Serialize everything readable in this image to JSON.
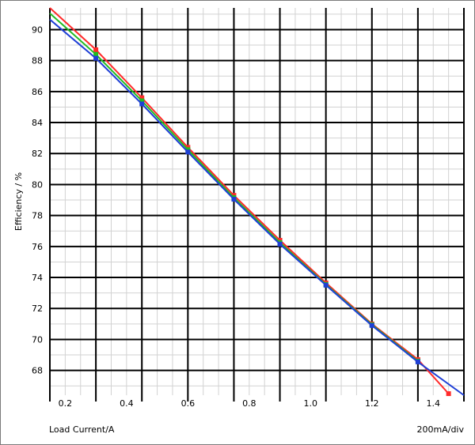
{
  "chart_data": {
    "type": "line",
    "title": "",
    "xlabel": "Load Current/A",
    "ylabel": "Efficiency / %",
    "x_scale_note": "200mA/div",
    "xlim": [
      0.15,
      1.5
    ],
    "ylim": [
      66.4,
      91.4
    ],
    "x_ticks": [
      0.2,
      0.4,
      0.6,
      0.8,
      1.0,
      1.2,
      1.4
    ],
    "x_tick_labels": [
      "0.2",
      "0.4",
      "0.6",
      "0.8",
      "1.0",
      "1.2",
      "1.4"
    ],
    "y_ticks": [
      68,
      70,
      72,
      74,
      76,
      78,
      80,
      82,
      84,
      86,
      88,
      90
    ],
    "y_tick_labels": [
      "68",
      "70",
      "72",
      "74",
      "76",
      "78",
      "80",
      "82",
      "84",
      "86",
      "88",
      "90"
    ],
    "grid": true,
    "series": [
      {
        "color": "#ff2a2a",
        "points": [
          [
            0.15,
            91.4
          ],
          [
            0.3,
            88.7
          ],
          [
            0.45,
            85.6
          ],
          [
            0.6,
            82.4
          ],
          [
            0.75,
            79.3
          ],
          [
            0.9,
            76.4
          ],
          [
            1.05,
            73.65
          ],
          [
            1.2,
            71.0
          ],
          [
            1.35,
            68.7
          ],
          [
            1.45,
            66.5
          ]
        ]
      },
      {
        "color": "#22bb22",
        "points": [
          [
            0.15,
            91.05
          ],
          [
            0.3,
            88.4
          ],
          [
            0.45,
            85.4
          ],
          [
            0.6,
            82.25
          ],
          [
            0.75,
            79.15
          ],
          [
            0.9,
            76.25
          ],
          [
            1.05,
            73.55
          ],
          [
            1.2,
            70.95
          ],
          [
            1.35,
            68.6
          ]
        ]
      },
      {
        "color": "#1f3fd6",
        "points": [
          [
            0.15,
            90.65
          ],
          [
            0.3,
            88.15
          ],
          [
            0.45,
            85.2
          ],
          [
            0.6,
            82.1
          ],
          [
            0.75,
            79.05
          ],
          [
            0.9,
            76.15
          ],
          [
            1.05,
            73.5
          ],
          [
            1.2,
            70.9
          ],
          [
            1.35,
            68.55
          ],
          [
            1.5,
            66.4
          ]
        ]
      }
    ]
  }
}
